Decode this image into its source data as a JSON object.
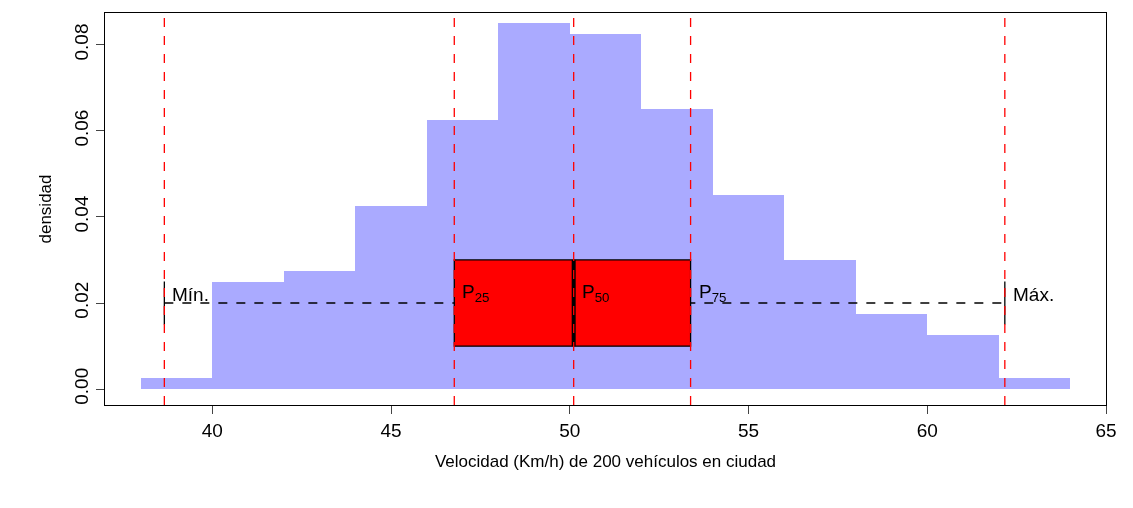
{
  "chart_data": {
    "type": "histogram",
    "xlabel": "Velocidad (Km/h) de 200 vehículos en ciudad",
    "ylabel": "densidad",
    "bins": [
      38,
      40,
      42,
      44,
      46,
      48,
      50,
      52,
      54,
      56,
      58,
      60,
      62,
      64
    ],
    "values": [
      0.0025,
      0.025,
      0.0275,
      0.0425,
      0.0625,
      0.085,
      0.0825,
      0.065,
      0.045,
      0.03,
      0.0175,
      0.0125,
      0.0025
    ],
    "color": "#aaaaff",
    "xlim": [
      37,
      65
    ],
    "xticks": [
      40,
      45,
      50,
      55,
      60,
      65
    ],
    "ylim": [
      -0.0037,
      0.0874
    ],
    "yticks": [
      {
        "value": 0,
        "label": "0.00"
      },
      {
        "value": 0.02,
        "label": "0.02"
      },
      {
        "value": 0.04,
        "label": "0.04"
      },
      {
        "value": 0.06,
        "label": "0.06"
      },
      {
        "value": 0.08,
        "label": "0.08"
      }
    ],
    "bands": [
      {
        "axis": "x",
        "from": 46.77,
        "to": 50.11,
        "color": "#ff0000"
      },
      {
        "axis": "x",
        "from": 50.11,
        "to": 53.38,
        "color": "#ff0000"
      }
    ],
    "ref_lines": [
      {
        "axis": "y",
        "value": 0.02,
        "color": "#000000",
        "line_style": "dashed"
      },
      {
        "axis": "x",
        "value": 38.66,
        "color": "#ff0000",
        "line_style": "dashed"
      },
      {
        "axis": "x",
        "value": 46.77,
        "color": "#ff0000",
        "line_style": "dashed"
      },
      {
        "axis": "x",
        "value": 50.11,
        "color": "#ff0000",
        "line_style": "dashed"
      },
      {
        "axis": "x",
        "value": 53.38,
        "color": "#ff0000",
        "line_style": "dashed"
      },
      {
        "axis": "x",
        "value": 62.17,
        "color": "#ff0000",
        "line_style": "dashed"
      }
    ],
    "annotations": [
      {
        "text": "Mín.",
        "x": 38.66,
        "y": 0.02
      },
      {
        "text": "P$_{25}$",
        "x": 46.77,
        "y": 0.02
      },
      {
        "text": "P$_{50}$",
        "x": 50.11,
        "y": 0.02
      },
      {
        "text": "P$_{75}$",
        "x": 53.38,
        "y": 0.02
      },
      {
        "text": "Máx.",
        "x": 62.17,
        "y": 0.02
      }
    ]
  }
}
